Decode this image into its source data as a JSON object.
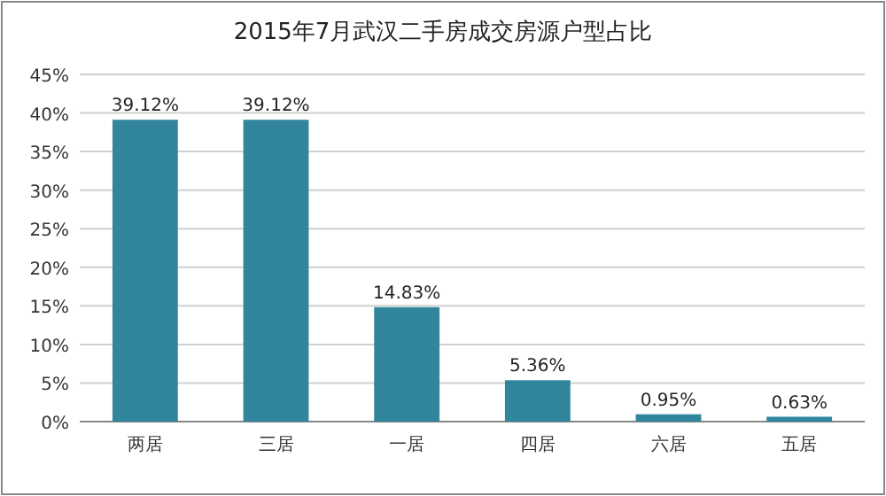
{
  "chart_data": {
    "type": "bar",
    "title": "2015年7月武汉二手房成交房源户型占比",
    "categories": [
      "两居",
      "三居",
      "一居",
      "四居",
      "六居",
      "五居"
    ],
    "values": [
      39.12,
      39.12,
      14.83,
      5.36,
      0.95,
      0.63
    ],
    "value_labels": [
      "39.12%",
      "39.12%",
      "14.83%",
      "5.36%",
      "0.95%",
      "0.63%"
    ],
    "color": "#31859c",
    "ylim": [
      0,
      45
    ],
    "yticks": [
      {
        "value": 0,
        "label": "0%"
      },
      {
        "value": 5,
        "label": "5%"
      },
      {
        "value": 10,
        "label": "10%"
      },
      {
        "value": 15,
        "label": "15%"
      },
      {
        "value": 20,
        "label": "20%"
      },
      {
        "value": 25,
        "label": "25%"
      },
      {
        "value": 30,
        "label": "30%"
      },
      {
        "value": 35,
        "label": "35%"
      },
      {
        "value": 40,
        "label": "40%"
      },
      {
        "value": 45,
        "label": "45%"
      }
    ],
    "grid": "y"
  }
}
